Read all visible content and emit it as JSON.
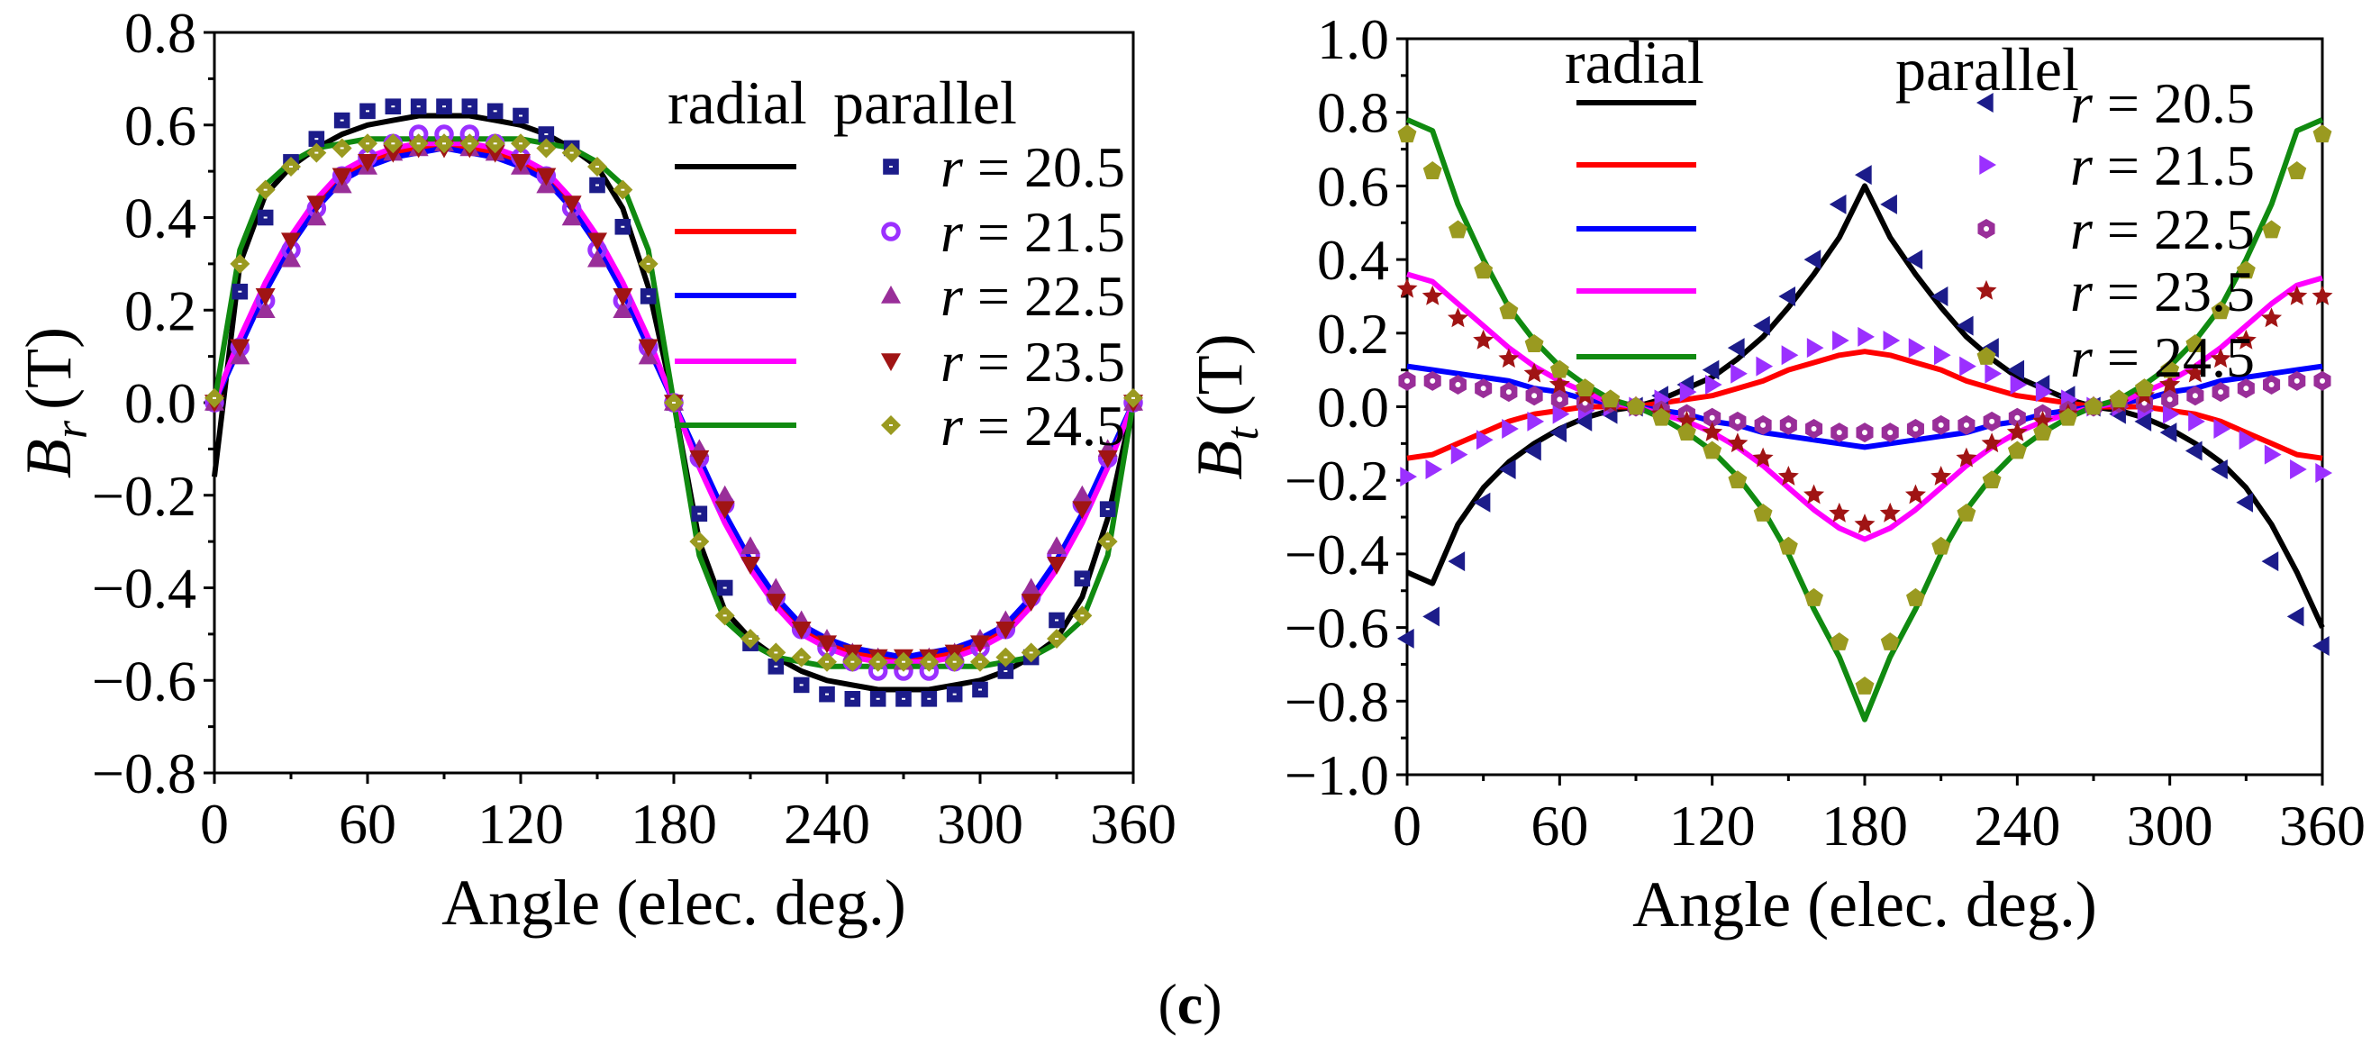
{
  "caption": {
    "open": "(",
    "letter": "c",
    "close": ")"
  },
  "colors": {
    "r20_5_line": "#000000",
    "r21_5_line": "#ff0000",
    "r22_5_line": "#0000ff",
    "r23_5_line": "#ff00ff",
    "r24_5_line": "#108a10",
    "r20_5_marker": "#1c1c8a",
    "r21_5_marker": "#9b30ff",
    "r22_5_marker": "#992e99",
    "r23_5_marker": "#a01414",
    "r24_5_marker": "#9a9a20"
  },
  "chart_data": [
    {
      "type": "line",
      "title": "",
      "xlabel": "Angle (elec. deg.)",
      "ylabel_main": "B",
      "ylabel_sub": "r",
      "ylabel_unit": "(T)",
      "xlim": [
        0,
        360
      ],
      "ylim": [
        -0.8,
        0.8
      ],
      "xticks": [
        "0",
        "60",
        "120",
        "180",
        "240",
        "300",
        "360"
      ],
      "yticks": [
        "0.8",
        "0.6",
        "0.4",
        "0.2",
        "0.0",
        "−0.2",
        "−0.4",
        "−0.6",
        "−0.8"
      ],
      "legend": {
        "radial_header": "radial",
        "parallel_header": "parallel",
        "placement": "top-right",
        "labels": [
          "r = 20.5",
          "r = 21.5",
          "r = 22.5",
          "r = 23.5",
          "r = 24.5"
        ]
      },
      "markers": [
        "square",
        "circle",
        "triangle-up",
        "triangle-down",
        "diamond"
      ],
      "x": [
        0,
        10,
        20,
        30,
        40,
        50,
        60,
        70,
        80,
        90,
        100,
        110,
        120,
        130,
        140,
        150,
        160,
        170,
        180,
        190,
        200,
        210,
        220,
        230,
        240,
        250,
        260,
        270,
        280,
        290,
        300,
        310,
        320,
        330,
        340,
        350,
        360
      ],
      "radial": [
        {
          "name": "r = 20.5",
          "values": [
            -0.16,
            0.3,
            0.45,
            0.51,
            0.55,
            0.58,
            0.6,
            0.61,
            0.62,
            0.62,
            0.62,
            0.61,
            0.6,
            0.58,
            0.55,
            0.51,
            0.42,
            0.25,
            0.0,
            -0.3,
            -0.45,
            -0.51,
            -0.55,
            -0.58,
            -0.6,
            -0.61,
            -0.62,
            -0.62,
            -0.62,
            -0.61,
            -0.6,
            -0.58,
            -0.55,
            -0.51,
            -0.42,
            -0.25,
            0.0
          ]
        },
        {
          "name": "r = 21.5",
          "values": [
            0,
            0.13,
            0.25,
            0.35,
            0.43,
            0.49,
            0.52,
            0.54,
            0.55,
            0.56,
            0.55,
            0.54,
            0.52,
            0.49,
            0.43,
            0.35,
            0.25,
            0.13,
            0,
            -0.13,
            -0.25,
            -0.35,
            -0.43,
            -0.49,
            -0.52,
            -0.54,
            -0.55,
            -0.56,
            -0.55,
            -0.54,
            -0.52,
            -0.49,
            -0.43,
            -0.35,
            -0.25,
            -0.13,
            0
          ]
        },
        {
          "name": "r = 22.5",
          "values": [
            0,
            0.12,
            0.24,
            0.34,
            0.42,
            0.48,
            0.51,
            0.53,
            0.54,
            0.55,
            0.54,
            0.53,
            0.51,
            0.48,
            0.42,
            0.34,
            0.24,
            0.12,
            0,
            -0.12,
            -0.24,
            -0.34,
            -0.42,
            -0.48,
            -0.51,
            -0.53,
            -0.54,
            -0.55,
            -0.54,
            -0.53,
            -0.51,
            -0.48,
            -0.42,
            -0.34,
            -0.24,
            -0.12,
            0
          ]
        },
        {
          "name": "r = 23.5",
          "values": [
            0,
            0.14,
            0.26,
            0.36,
            0.44,
            0.5,
            0.53,
            0.55,
            0.56,
            0.56,
            0.56,
            0.55,
            0.53,
            0.5,
            0.44,
            0.36,
            0.26,
            0.14,
            0,
            -0.14,
            -0.26,
            -0.36,
            -0.44,
            -0.5,
            -0.53,
            -0.55,
            -0.56,
            -0.56,
            -0.56,
            -0.55,
            -0.53,
            -0.5,
            -0.44,
            -0.36,
            -0.26,
            -0.14,
            0
          ]
        },
        {
          "name": "r = 24.5",
          "values": [
            0,
            0.33,
            0.47,
            0.52,
            0.55,
            0.56,
            0.57,
            0.57,
            0.57,
            0.57,
            0.57,
            0.57,
            0.57,
            0.56,
            0.55,
            0.52,
            0.47,
            0.33,
            0,
            -0.33,
            -0.47,
            -0.52,
            -0.55,
            -0.56,
            -0.57,
            -0.57,
            -0.57,
            -0.57,
            -0.57,
            -0.57,
            -0.57,
            -0.56,
            -0.55,
            -0.52,
            -0.47,
            -0.33,
            0
          ]
        }
      ],
      "parallel": [
        {
          "name": "r = 20.5",
          "values": [
            0,
            0.24,
            0.4,
            0.52,
            0.57,
            0.61,
            0.63,
            0.64,
            0.64,
            0.64,
            0.64,
            0.63,
            0.62,
            0.58,
            0.55,
            0.47,
            0.38,
            0.23,
            0,
            -0.24,
            -0.4,
            -0.52,
            -0.57,
            -0.61,
            -0.63,
            -0.64,
            -0.64,
            -0.64,
            -0.64,
            -0.63,
            -0.62,
            -0.58,
            -0.55,
            -0.47,
            -0.38,
            -0.23,
            0
          ]
        },
        {
          "name": "r = 21.5",
          "values": [
            0,
            0.12,
            0.22,
            0.33,
            0.42,
            0.49,
            0.53,
            0.56,
            0.58,
            0.58,
            0.58,
            0.56,
            0.53,
            0.49,
            0.42,
            0.33,
            0.22,
            0.12,
            0,
            -0.12,
            -0.22,
            -0.33,
            -0.42,
            -0.49,
            -0.53,
            -0.56,
            -0.58,
            -0.58,
            -0.58,
            -0.56,
            -0.53,
            -0.49,
            -0.42,
            -0.33,
            -0.22,
            -0.12,
            0
          ]
        },
        {
          "name": "r = 22.5",
          "values": [
            0,
            0.1,
            0.2,
            0.31,
            0.4,
            0.47,
            0.51,
            0.54,
            0.55,
            0.56,
            0.55,
            0.54,
            0.51,
            0.47,
            0.4,
            0.31,
            0.2,
            0.1,
            0,
            -0.1,
            -0.2,
            -0.31,
            -0.4,
            -0.47,
            -0.51,
            -0.54,
            -0.55,
            -0.56,
            -0.55,
            -0.54,
            -0.51,
            -0.47,
            -0.4,
            -0.31,
            -0.2,
            -0.1,
            0
          ]
        },
        {
          "name": "r = 23.5",
          "values": [
            0,
            0.12,
            0.23,
            0.35,
            0.43,
            0.49,
            0.52,
            0.54,
            0.55,
            0.55,
            0.55,
            0.54,
            0.52,
            0.49,
            0.43,
            0.35,
            0.23,
            0.12,
            0,
            -0.12,
            -0.23,
            -0.35,
            -0.43,
            -0.49,
            -0.52,
            -0.54,
            -0.55,
            -0.55,
            -0.55,
            -0.54,
            -0.52,
            -0.49,
            -0.43,
            -0.35,
            -0.23,
            -0.12,
            0
          ]
        },
        {
          "name": "r = 24.5",
          "values": [
            0.01,
            0.3,
            0.46,
            0.51,
            0.54,
            0.55,
            0.56,
            0.56,
            0.56,
            0.56,
            0.56,
            0.56,
            0.56,
            0.55,
            0.54,
            0.51,
            0.46,
            0.3,
            0.0,
            -0.3,
            -0.46,
            -0.51,
            -0.54,
            -0.55,
            -0.56,
            -0.56,
            -0.56,
            -0.56,
            -0.56,
            -0.56,
            -0.56,
            -0.55,
            -0.54,
            -0.51,
            -0.46,
            -0.3,
            0.01
          ]
        }
      ]
    },
    {
      "type": "line",
      "title": "",
      "xlabel": "Angle (elec. deg.)",
      "ylabel_main": "B",
      "ylabel_sub": "t",
      "ylabel_unit": "(T)",
      "xlim": [
        0,
        360
      ],
      "ylim": [
        -1.0,
        1.0
      ],
      "xticks": [
        "0",
        "60",
        "120",
        "180",
        "240",
        "300",
        "360"
      ],
      "yticks": [
        "1.0",
        "0.8",
        "0.6",
        "0.4",
        "0.2",
        "0.0",
        "−0.2",
        "−0.4",
        "−0.6",
        "−0.8",
        "−1.0"
      ],
      "legend": {
        "radial_header": "radial",
        "parallel_header": "parallel",
        "placement": "top",
        "labels": [
          "r = 20.5",
          "r = 21.5",
          "r = 22.5",
          "r = 23.5",
          "r = 24.5"
        ]
      },
      "markers": [
        "triangle-left",
        "triangle-right",
        "hexagon",
        "star",
        "pentagon"
      ],
      "x": [
        0,
        10,
        20,
        30,
        40,
        50,
        60,
        70,
        80,
        90,
        100,
        110,
        120,
        130,
        140,
        150,
        160,
        170,
        180,
        190,
        200,
        210,
        220,
        230,
        240,
        250,
        260,
        270,
        280,
        290,
        300,
        310,
        320,
        330,
        340,
        350,
        360
      ],
      "radial": [
        {
          "name": "r = 20.5",
          "values": [
            -0.45,
            -0.48,
            -0.32,
            -0.22,
            -0.15,
            -0.1,
            -0.06,
            -0.03,
            -0.01,
            0.0,
            0.02,
            0.05,
            0.08,
            0.13,
            0.19,
            0.27,
            0.36,
            0.46,
            0.6,
            0.46,
            0.36,
            0.27,
            0.19,
            0.13,
            0.08,
            0.05,
            0.02,
            0.0,
            -0.01,
            -0.03,
            -0.06,
            -0.1,
            -0.15,
            -0.22,
            -0.32,
            -0.45,
            -0.6
          ]
        },
        {
          "name": "r = 21.5",
          "values": [
            -0.14,
            -0.13,
            -0.1,
            -0.07,
            -0.04,
            -0.02,
            -0.01,
            0.0,
            0.0,
            0.0,
            0.01,
            0.02,
            0.03,
            0.05,
            0.07,
            0.1,
            0.12,
            0.14,
            0.15,
            0.14,
            0.12,
            0.1,
            0.07,
            0.05,
            0.03,
            0.02,
            0.01,
            0.0,
            0.0,
            0.0,
            -0.01,
            -0.02,
            -0.04,
            -0.07,
            -0.1,
            -0.13,
            -0.14
          ]
        },
        {
          "name": "r = 22.5",
          "values": [
            0.11,
            0.1,
            0.09,
            0.08,
            0.07,
            0.05,
            0.04,
            0.02,
            0.01,
            0.0,
            -0.01,
            -0.02,
            -0.04,
            -0.05,
            -0.07,
            -0.08,
            -0.09,
            -0.1,
            -0.11,
            -0.1,
            -0.09,
            -0.08,
            -0.07,
            -0.05,
            -0.04,
            -0.02,
            -0.01,
            0.0,
            0.01,
            0.02,
            0.04,
            0.05,
            0.07,
            0.08,
            0.09,
            0.1,
            0.11
          ]
        },
        {
          "name": "r = 23.5",
          "values": [
            0.36,
            0.34,
            0.28,
            0.22,
            0.16,
            0.11,
            0.07,
            0.04,
            0.01,
            0.0,
            -0.02,
            -0.04,
            -0.07,
            -0.11,
            -0.16,
            -0.22,
            -0.28,
            -0.33,
            -0.36,
            -0.33,
            -0.28,
            -0.22,
            -0.16,
            -0.11,
            -0.07,
            -0.04,
            -0.02,
            0.0,
            0.01,
            0.04,
            0.07,
            0.11,
            0.16,
            0.22,
            0.28,
            0.33,
            0.35
          ]
        },
        {
          "name": "r = 24.5",
          "values": [
            0.78,
            0.75,
            0.55,
            0.4,
            0.27,
            0.18,
            0.11,
            0.06,
            0.02,
            0.0,
            -0.03,
            -0.07,
            -0.12,
            -0.19,
            -0.28,
            -0.4,
            -0.55,
            -0.68,
            -0.85,
            -0.68,
            -0.55,
            -0.4,
            -0.28,
            -0.19,
            -0.12,
            -0.07,
            -0.03,
            0.0,
            0.02,
            0.06,
            0.11,
            0.18,
            0.27,
            0.4,
            0.55,
            0.75,
            0.78
          ]
        }
      ],
      "parallel": [
        {
          "name": "r = 20.5",
          "values": [
            -0.63,
            -0.57,
            -0.42,
            -0.26,
            -0.17,
            -0.12,
            -0.07,
            -0.04,
            -0.02,
            0.0,
            0.03,
            0.06,
            0.1,
            0.16,
            0.22,
            0.3,
            0.4,
            0.55,
            0.63,
            0.55,
            0.4,
            0.3,
            0.22,
            0.16,
            0.1,
            0.06,
            0.03,
            0.0,
            -0.02,
            -0.04,
            -0.07,
            -0.12,
            -0.17,
            -0.26,
            -0.42,
            -0.57,
            -0.65
          ]
        },
        {
          "name": "r = 21.5",
          "values": [
            -0.19,
            -0.17,
            -0.13,
            -0.09,
            -0.06,
            -0.04,
            -0.02,
            -0.01,
            0.0,
            0.0,
            0.02,
            0.04,
            0.06,
            0.09,
            0.11,
            0.14,
            0.16,
            0.18,
            0.19,
            0.18,
            0.16,
            0.14,
            0.11,
            0.09,
            0.06,
            0.04,
            0.02,
            0.0,
            0.0,
            -0.01,
            -0.02,
            -0.04,
            -0.06,
            -0.09,
            -0.13,
            -0.17,
            -0.18
          ]
        },
        {
          "name": "r = 22.5",
          "values": [
            0.07,
            0.07,
            0.06,
            0.05,
            0.04,
            0.03,
            0.02,
            0.01,
            0.01,
            0.0,
            -0.01,
            -0.02,
            -0.03,
            -0.04,
            -0.05,
            -0.05,
            -0.06,
            -0.07,
            -0.07,
            -0.07,
            -0.06,
            -0.05,
            -0.05,
            -0.04,
            -0.03,
            -0.02,
            -0.01,
            0.0,
            0.01,
            0.01,
            0.02,
            0.03,
            0.04,
            0.05,
            0.06,
            0.07,
            0.07
          ]
        },
        {
          "name": "r = 23.5",
          "values": [
            0.32,
            0.3,
            0.24,
            0.18,
            0.13,
            0.09,
            0.06,
            0.03,
            0.01,
            0.0,
            -0.02,
            -0.04,
            -0.07,
            -0.1,
            -0.14,
            -0.19,
            -0.24,
            -0.29,
            -0.32,
            -0.29,
            -0.24,
            -0.19,
            -0.14,
            -0.1,
            -0.07,
            -0.04,
            -0.02,
            0.0,
            0.01,
            0.03,
            0.06,
            0.09,
            0.13,
            0.18,
            0.24,
            0.3,
            0.3
          ]
        },
        {
          "name": "r = 24.5",
          "values": [
            0.74,
            0.64,
            0.48,
            0.37,
            0.26,
            0.17,
            0.1,
            0.05,
            0.02,
            0.0,
            -0.03,
            -0.07,
            -0.12,
            -0.2,
            -0.29,
            -0.38,
            -0.52,
            -0.64,
            -0.76,
            -0.64,
            -0.52,
            -0.38,
            -0.29,
            -0.2,
            -0.12,
            -0.07,
            -0.03,
            0.0,
            0.02,
            0.05,
            0.1,
            0.17,
            0.26,
            0.37,
            0.48,
            0.64,
            0.74
          ]
        }
      ]
    }
  ]
}
